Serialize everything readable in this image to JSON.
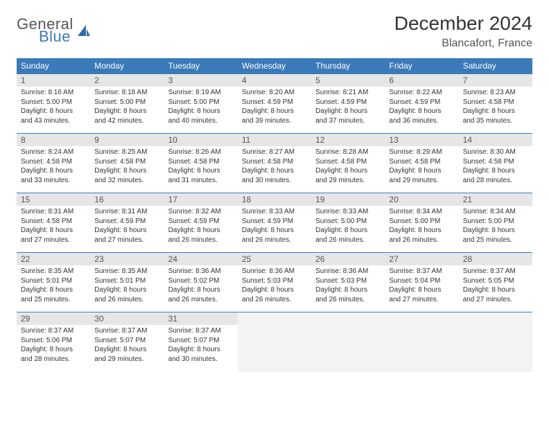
{
  "brand": {
    "line1": "General",
    "line2": "Blue",
    "icon_color": "#2f6fa8"
  },
  "title": "December 2024",
  "location": "Blancafort, France",
  "colors": {
    "header_bg": "#3a7ab8",
    "daynum_bg": "#e6e6e6",
    "rule": "#3a7ab8"
  },
  "weekdays": [
    "Sunday",
    "Monday",
    "Tuesday",
    "Wednesday",
    "Thursday",
    "Friday",
    "Saturday"
  ],
  "days": [
    {
      "n": "1",
      "sunrise": "Sunrise: 8:16 AM",
      "sunset": "Sunset: 5:00 PM",
      "day1": "Daylight: 8 hours",
      "day2": "and 43 minutes."
    },
    {
      "n": "2",
      "sunrise": "Sunrise: 8:18 AM",
      "sunset": "Sunset: 5:00 PM",
      "day1": "Daylight: 8 hours",
      "day2": "and 42 minutes."
    },
    {
      "n": "3",
      "sunrise": "Sunrise: 8:19 AM",
      "sunset": "Sunset: 5:00 PM",
      "day1": "Daylight: 8 hours",
      "day2": "and 40 minutes."
    },
    {
      "n": "4",
      "sunrise": "Sunrise: 8:20 AM",
      "sunset": "Sunset: 4:59 PM",
      "day1": "Daylight: 8 hours",
      "day2": "and 39 minutes."
    },
    {
      "n": "5",
      "sunrise": "Sunrise: 8:21 AM",
      "sunset": "Sunset: 4:59 PM",
      "day1": "Daylight: 8 hours",
      "day2": "and 37 minutes."
    },
    {
      "n": "6",
      "sunrise": "Sunrise: 8:22 AM",
      "sunset": "Sunset: 4:59 PM",
      "day1": "Daylight: 8 hours",
      "day2": "and 36 minutes."
    },
    {
      "n": "7",
      "sunrise": "Sunrise: 8:23 AM",
      "sunset": "Sunset: 4:58 PM",
      "day1": "Daylight: 8 hours",
      "day2": "and 35 minutes."
    },
    {
      "n": "8",
      "sunrise": "Sunrise: 8:24 AM",
      "sunset": "Sunset: 4:58 PM",
      "day1": "Daylight: 8 hours",
      "day2": "and 33 minutes."
    },
    {
      "n": "9",
      "sunrise": "Sunrise: 8:25 AM",
      "sunset": "Sunset: 4:58 PM",
      "day1": "Daylight: 8 hours",
      "day2": "and 32 minutes."
    },
    {
      "n": "10",
      "sunrise": "Sunrise: 8:26 AM",
      "sunset": "Sunset: 4:58 PM",
      "day1": "Daylight: 8 hours",
      "day2": "and 31 minutes."
    },
    {
      "n": "11",
      "sunrise": "Sunrise: 8:27 AM",
      "sunset": "Sunset: 4:58 PM",
      "day1": "Daylight: 8 hours",
      "day2": "and 30 minutes."
    },
    {
      "n": "12",
      "sunrise": "Sunrise: 8:28 AM",
      "sunset": "Sunset: 4:58 PM",
      "day1": "Daylight: 8 hours",
      "day2": "and 29 minutes."
    },
    {
      "n": "13",
      "sunrise": "Sunrise: 8:29 AM",
      "sunset": "Sunset: 4:58 PM",
      "day1": "Daylight: 8 hours",
      "day2": "and 29 minutes."
    },
    {
      "n": "14",
      "sunrise": "Sunrise: 8:30 AM",
      "sunset": "Sunset: 4:58 PM",
      "day1": "Daylight: 8 hours",
      "day2": "and 28 minutes."
    },
    {
      "n": "15",
      "sunrise": "Sunrise: 8:31 AM",
      "sunset": "Sunset: 4:58 PM",
      "day1": "Daylight: 8 hours",
      "day2": "and 27 minutes."
    },
    {
      "n": "16",
      "sunrise": "Sunrise: 8:31 AM",
      "sunset": "Sunset: 4:59 PM",
      "day1": "Daylight: 8 hours",
      "day2": "and 27 minutes."
    },
    {
      "n": "17",
      "sunrise": "Sunrise: 8:32 AM",
      "sunset": "Sunset: 4:59 PM",
      "day1": "Daylight: 8 hours",
      "day2": "and 26 minutes."
    },
    {
      "n": "18",
      "sunrise": "Sunrise: 8:33 AM",
      "sunset": "Sunset: 4:59 PM",
      "day1": "Daylight: 8 hours",
      "day2": "and 26 minutes."
    },
    {
      "n": "19",
      "sunrise": "Sunrise: 8:33 AM",
      "sunset": "Sunset: 5:00 PM",
      "day1": "Daylight: 8 hours",
      "day2": "and 26 minutes."
    },
    {
      "n": "20",
      "sunrise": "Sunrise: 8:34 AM",
      "sunset": "Sunset: 5:00 PM",
      "day1": "Daylight: 8 hours",
      "day2": "and 26 minutes."
    },
    {
      "n": "21",
      "sunrise": "Sunrise: 8:34 AM",
      "sunset": "Sunset: 5:00 PM",
      "day1": "Daylight: 8 hours",
      "day2": "and 25 minutes."
    },
    {
      "n": "22",
      "sunrise": "Sunrise: 8:35 AM",
      "sunset": "Sunset: 5:01 PM",
      "day1": "Daylight: 8 hours",
      "day2": "and 25 minutes."
    },
    {
      "n": "23",
      "sunrise": "Sunrise: 8:35 AM",
      "sunset": "Sunset: 5:01 PM",
      "day1": "Daylight: 8 hours",
      "day2": "and 26 minutes."
    },
    {
      "n": "24",
      "sunrise": "Sunrise: 8:36 AM",
      "sunset": "Sunset: 5:02 PM",
      "day1": "Daylight: 8 hours",
      "day2": "and 26 minutes."
    },
    {
      "n": "25",
      "sunrise": "Sunrise: 8:36 AM",
      "sunset": "Sunset: 5:03 PM",
      "day1": "Daylight: 8 hours",
      "day2": "and 26 minutes."
    },
    {
      "n": "26",
      "sunrise": "Sunrise: 8:36 AM",
      "sunset": "Sunset: 5:03 PM",
      "day1": "Daylight: 8 hours",
      "day2": "and 26 minutes."
    },
    {
      "n": "27",
      "sunrise": "Sunrise: 8:37 AM",
      "sunset": "Sunset: 5:04 PM",
      "day1": "Daylight: 8 hours",
      "day2": "and 27 minutes."
    },
    {
      "n": "28",
      "sunrise": "Sunrise: 8:37 AM",
      "sunset": "Sunset: 5:05 PM",
      "day1": "Daylight: 8 hours",
      "day2": "and 27 minutes."
    },
    {
      "n": "29",
      "sunrise": "Sunrise: 8:37 AM",
      "sunset": "Sunset: 5:06 PM",
      "day1": "Daylight: 8 hours",
      "day2": "and 28 minutes."
    },
    {
      "n": "30",
      "sunrise": "Sunrise: 8:37 AM",
      "sunset": "Sunset: 5:07 PM",
      "day1": "Daylight: 8 hours",
      "day2": "and 29 minutes."
    },
    {
      "n": "31",
      "sunrise": "Sunrise: 8:37 AM",
      "sunset": "Sunset: 5:07 PM",
      "day1": "Daylight: 8 hours",
      "day2": "and 30 minutes."
    }
  ]
}
